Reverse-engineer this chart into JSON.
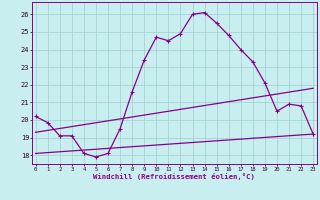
{
  "xlabel": "Windchill (Refroidissement éolien,°C)",
  "background_color": "#c8eef0",
  "grid_color": "#9ecfcf",
  "line_color": "#880088",
  "spine_color": "#880088",
  "x_ticks": [
    0,
    1,
    2,
    3,
    4,
    5,
    6,
    7,
    8,
    9,
    10,
    11,
    12,
    13,
    14,
    15,
    16,
    17,
    18,
    19,
    20,
    21,
    22,
    23
  ],
  "y_ticks": [
    18,
    19,
    20,
    21,
    22,
    23,
    24,
    25,
    26
  ],
  "xlim": [
    -0.3,
    23.3
  ],
  "ylim": [
    17.5,
    26.7
  ],
  "main_curve": {
    "x": [
      0,
      1,
      2,
      3,
      4,
      5,
      6,
      7,
      8,
      9,
      10,
      11,
      12,
      13,
      14,
      15,
      16,
      17,
      18,
      19,
      20,
      21,
      22,
      23
    ],
    "y": [
      20.2,
      19.85,
      19.1,
      19.1,
      18.1,
      17.9,
      18.1,
      19.5,
      21.6,
      23.4,
      24.7,
      24.5,
      24.9,
      26.0,
      26.1,
      25.5,
      24.8,
      24.0,
      23.3,
      22.1,
      20.5,
      20.9,
      20.8,
      19.2
    ]
  },
  "line_upper": {
    "x": [
      0,
      23
    ],
    "y": [
      19.3,
      21.8
    ]
  },
  "line_lower": {
    "x": [
      0,
      23
    ],
    "y": [
      18.1,
      19.2
    ]
  }
}
